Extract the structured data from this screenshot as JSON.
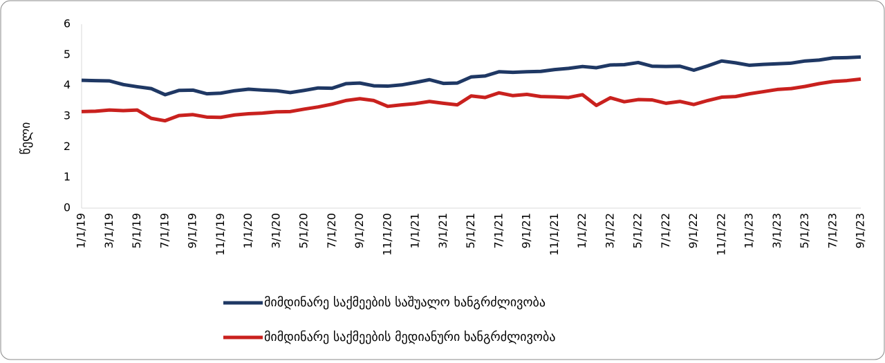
{
  "chart_data": {
    "type": "line",
    "y_label": "წელი",
    "categories": [
      "1/1/19",
      null,
      "3/1/19",
      null,
      "5/1/19",
      null,
      "7/1/19",
      null,
      "9/1/19",
      null,
      "11/1/19",
      null,
      "1/1/20",
      null,
      "3/1/20",
      null,
      "5/1/20",
      null,
      "7/1/20",
      null,
      "9/1/20",
      null,
      "11/1/20",
      null,
      "1/1/21",
      null,
      "3/1/21",
      null,
      "5/1/21",
      null,
      "7/1/21",
      null,
      "9/1/21",
      null,
      "11/1/21",
      null,
      "1/1/22",
      null,
      "3/1/22",
      null,
      "5/1/22",
      null,
      "7/1/22",
      null,
      "9/1/22",
      null,
      "11/1/22",
      null,
      "1/1/23",
      null,
      "3/1/23",
      null,
      "5/1/23",
      null,
      "7/1/23",
      null,
      "9/1/23"
    ],
    "series": [
      {
        "name": "მიმდინარე საქმეების საშუალო ხანგრძლივობა",
        "color": "#1f3864",
        "values": [
          4.17,
          4.16,
          4.15,
          4.03,
          3.96,
          3.9,
          3.7,
          3.84,
          3.85,
          3.73,
          3.75,
          3.83,
          3.88,
          3.85,
          3.83,
          3.77,
          3.84,
          3.92,
          3.91,
          4.06,
          4.08,
          3.99,
          3.98,
          4.02,
          4.1,
          4.19,
          4.07,
          4.08,
          4.28,
          4.31,
          4.45,
          4.43,
          4.45,
          4.46,
          4.52,
          4.56,
          4.62,
          4.58,
          4.67,
          4.68,
          4.75,
          4.63,
          4.62,
          4.63,
          4.5,
          4.64,
          4.8,
          4.74,
          4.66,
          4.69,
          4.71,
          4.73,
          4.8,
          4.83,
          4.9,
          4.91,
          4.93
        ]
      },
      {
        "name": "მიმდინარე საქმეების მედიანური ხანგრძლივობა",
        "color": "#c9211e",
        "values": [
          3.15,
          3.16,
          3.2,
          3.18,
          3.2,
          2.93,
          2.85,
          3.02,
          3.05,
          2.97,
          2.96,
          3.04,
          3.08,
          3.1,
          3.14,
          3.15,
          3.23,
          3.3,
          3.39,
          3.51,
          3.57,
          3.51,
          3.32,
          3.37,
          3.41,
          3.48,
          3.42,
          3.37,
          3.66,
          3.61,
          3.76,
          3.67,
          3.71,
          3.64,
          3.63,
          3.61,
          3.7,
          3.35,
          3.6,
          3.47,
          3.54,
          3.53,
          3.42,
          3.48,
          3.38,
          3.51,
          3.62,
          3.64,
          3.73,
          3.8,
          3.87,
          3.9,
          3.97,
          4.06,
          4.13,
          4.16,
          4.21
        ]
      }
    ],
    "ylim": [
      0,
      6
    ],
    "yticks": [
      0,
      1,
      2,
      3,
      4,
      5,
      6
    ],
    "grid": false,
    "legend": "bottom"
  }
}
